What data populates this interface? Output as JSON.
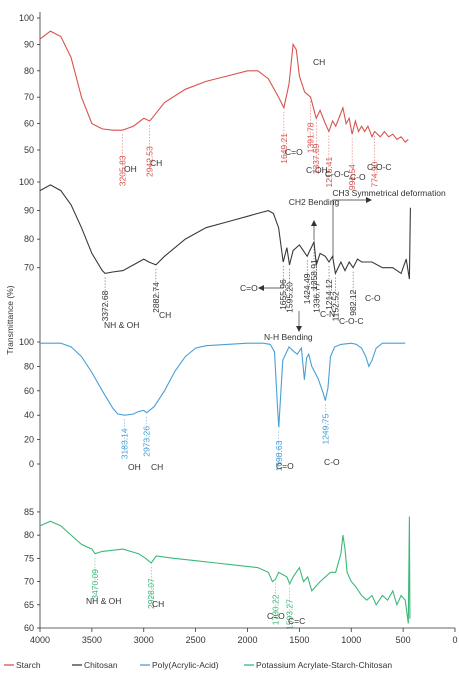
{
  "chart_data": {
    "type": "line",
    "ylabel": "Transmittance (%)",
    "xlim": [
      4000,
      0
    ],
    "x_ticks": [
      "4000",
      "3500",
      "3000",
      "2500",
      "2000",
      "1500",
      "1000",
      "500",
      "0"
    ],
    "grid": false,
    "legend_position": "bottom",
    "panels": [
      {
        "series": "Starch",
        "color": "#d9534f",
        "ylim": [
          50,
          100
        ],
        "y_ticks": [
          "50",
          "60",
          "70",
          "80",
          "90",
          "100"
        ],
        "points": [
          [
            4000,
            92
          ],
          [
            3900,
            95
          ],
          [
            3800,
            93
          ],
          [
            3700,
            85
          ],
          [
            3600,
            70
          ],
          [
            3500,
            60
          ],
          [
            3400,
            58
          ],
          [
            3300,
            57.5
          ],
          [
            3205.83,
            57.5
          ],
          [
            3100,
            59
          ],
          [
            3000,
            62
          ],
          [
            2942.53,
            61
          ],
          [
            2900,
            63
          ],
          [
            2800,
            68
          ],
          [
            2600,
            73
          ],
          [
            2400,
            76
          ],
          [
            2200,
            78
          ],
          [
            2000,
            80
          ],
          [
            1900,
            80
          ],
          [
            1800,
            77
          ],
          [
            1700,
            70
          ],
          [
            1649.21,
            66
          ],
          [
            1600,
            75
          ],
          [
            1560,
            90
          ],
          [
            1530,
            88
          ],
          [
            1500,
            78
          ],
          [
            1450,
            72
          ],
          [
            1391.78,
            70
          ],
          [
            1337.69,
            62
          ],
          [
            1300,
            65
          ],
          [
            1250,
            60
          ],
          [
            1215.41,
            57
          ],
          [
            1180,
            61
          ],
          [
            1150,
            59
          ],
          [
            1100,
            64
          ],
          [
            1080,
            66
          ],
          [
            1050,
            60
          ],
          [
            1020,
            62
          ],
          [
            991.54,
            56
          ],
          [
            960,
            61
          ],
          [
            930,
            57
          ],
          [
            900,
            59
          ],
          [
            870,
            57
          ],
          [
            840,
            59
          ],
          [
            800,
            55
          ],
          [
            774.9,
            57
          ],
          [
            720,
            55
          ],
          [
            680,
            57
          ],
          [
            640,
            55
          ],
          [
            600,
            56
          ],
          [
            560,
            54
          ],
          [
            520,
            55
          ],
          [
            480,
            53
          ],
          [
            450,
            54
          ]
        ],
        "peaks": [
          {
            "label": "3205.83",
            "x": 3205.83,
            "y": 57.5
          },
          {
            "label": "2942.53",
            "x": 2942.53,
            "y": 61
          },
          {
            "label": "1649.21",
            "x": 1649.21,
            "y": 66
          },
          {
            "label": "1391.78",
            "x": 1391.78,
            "y": 70
          },
          {
            "label": "1337.69",
            "x": 1337.69,
            "y": 62
          },
          {
            "label": "1215.41",
            "x": 1215.41,
            "y": 57
          },
          {
            "label": "991.54",
            "x": 991.54,
            "y": 56
          },
          {
            "label": "774.90",
            "x": 774.9,
            "y": 57
          }
        ],
        "annotations": [
          "OH",
          "CH",
          "C=O",
          "CH",
          "C-OH",
          "C-O-C",
          "C-O",
          "C-O-C"
        ]
      },
      {
        "series": "Chitosan",
        "color": "#3a3a3a",
        "ylim": [
          65,
          100
        ],
        "y_ticks": [
          "70",
          "80",
          "90",
          "100"
        ],
        "points": [
          [
            4000,
            97
          ],
          [
            3900,
            99
          ],
          [
            3800,
            97
          ],
          [
            3700,
            92
          ],
          [
            3600,
            84
          ],
          [
            3500,
            75
          ],
          [
            3400,
            69
          ],
          [
            3372.68,
            68
          ],
          [
            3300,
            68.5
          ],
          [
            3200,
            69
          ],
          [
            3100,
            71
          ],
          [
            3000,
            73
          ],
          [
            2950,
            72
          ],
          [
            2882.74,
            71
          ],
          [
            2800,
            74
          ],
          [
            2600,
            80
          ],
          [
            2400,
            84
          ],
          [
            2200,
            86
          ],
          [
            2000,
            88
          ],
          [
            1900,
            89
          ],
          [
            1800,
            90
          ],
          [
            1750,
            89
          ],
          [
            1700,
            84
          ],
          [
            1655.96,
            72
          ],
          [
            1620,
            77
          ],
          [
            1595.2,
            71
          ],
          [
            1560,
            76
          ],
          [
            1500,
            78
          ],
          [
            1424.49,
            74
          ],
          [
            1400,
            76
          ],
          [
            1358.91,
            79
          ],
          [
            1336.77,
            71
          ],
          [
            1300,
            75
          ],
          [
            1250,
            74
          ],
          [
            1214.12,
            72
          ],
          [
            1180,
            74
          ],
          [
            1152.52,
            68
          ],
          [
            1100,
            72
          ],
          [
            1060,
            69
          ],
          [
            1020,
            72
          ],
          [
            982.12,
            70
          ],
          [
            940,
            73
          ],
          [
            900,
            72
          ],
          [
            800,
            72
          ],
          [
            700,
            70
          ],
          [
            600,
            70
          ],
          [
            520,
            68
          ],
          [
            470,
            73
          ],
          [
            440,
            66
          ],
          [
            430,
            91
          ]
        ],
        "peaks": [
          {
            "label": "3372.68",
            "x": 3372.68,
            "y": 68
          },
          {
            "label": "2882.74",
            "x": 2882.74,
            "y": 71
          },
          {
            "label": "1655.96",
            "x": 1655.96,
            "y": 72
          },
          {
            "label": "1595.20",
            "x": 1595.2,
            "y": 71
          },
          {
            "label": "1424.49",
            "x": 1424.49,
            "y": 74
          },
          {
            "label": "1358.91",
            "x": 1358.91,
            "y": 79
          },
          {
            "label": "1336.77",
            "x": 1336.77,
            "y": 71
          },
          {
            "label": "1214.12",
            "x": 1214.12,
            "y": 72
          },
          {
            "label": "1152.52",
            "x": 1152.52,
            "y": 68
          },
          {
            "label": "982.12",
            "x": 982.12,
            "y": 70
          }
        ],
        "annotations": [
          "NH & OH",
          "CH",
          "C=O",
          "N-H Bending",
          "C-N",
          "C-O-C",
          "C-O",
          "CH2 Bending",
          "CH3 Symmetrical deformation"
        ]
      },
      {
        "series": "Poly(Acrylic-Acid)",
        "color": "#4a9fd5",
        "ylim": [
          0,
          100
        ],
        "y_ticks": [
          "0",
          "20",
          "40",
          "60",
          "80",
          "100"
        ],
        "points": [
          [
            4000,
            99
          ],
          [
            3800,
            99
          ],
          [
            3700,
            96
          ],
          [
            3600,
            88
          ],
          [
            3500,
            75
          ],
          [
            3400,
            60
          ],
          [
            3300,
            46
          ],
          [
            3250,
            41
          ],
          [
            3183.14,
            40
          ],
          [
            3100,
            41
          ],
          [
            3050,
            43
          ],
          [
            3000,
            44
          ],
          [
            2973.26,
            42
          ],
          [
            2900,
            47
          ],
          [
            2800,
            60
          ],
          [
            2700,
            76
          ],
          [
            2600,
            88
          ],
          [
            2500,
            95
          ],
          [
            2400,
            97
          ],
          [
            2200,
            98
          ],
          [
            2000,
            99
          ],
          [
            1850,
            99
          ],
          [
            1780,
            98
          ],
          [
            1740,
            92
          ],
          [
            1710,
            45
          ],
          [
            1698.63,
            30
          ],
          [
            1685,
            50
          ],
          [
            1660,
            85
          ],
          [
            1600,
            96
          ],
          [
            1550,
            92
          ],
          [
            1520,
            90
          ],
          [
            1480,
            95
          ],
          [
            1452,
            69
          ],
          [
            1430,
            87
          ],
          [
            1410,
            90
          ],
          [
            1380,
            80
          ],
          [
            1320,
            70
          ],
          [
            1270,
            58
          ],
          [
            1249.75,
            52
          ],
          [
            1225,
            62
          ],
          [
            1200,
            88
          ],
          [
            1160,
            96
          ],
          [
            1100,
            98
          ],
          [
            1000,
            99
          ],
          [
            950,
            98
          ],
          [
            900,
            95
          ],
          [
            860,
            88
          ],
          [
            830,
            80
          ],
          [
            800,
            85
          ],
          [
            760,
            95
          ],
          [
            700,
            99
          ],
          [
            600,
            99
          ],
          [
            480,
            99
          ]
        ],
        "peaks": [
          {
            "label": "3183.14",
            "x": 3183.14,
            "y": 40
          },
          {
            "label": "2973.26",
            "x": 2973.26,
            "y": 42
          },
          {
            "label": "1698.63",
            "x": 1698.63,
            "y": 30
          },
          {
            "label": "1249.75",
            "x": 1249.75,
            "y": 52
          }
        ],
        "annotations": [
          "OH",
          "CH",
          "C=O",
          "C-O"
        ]
      },
      {
        "series": "Potassium Acrylate-Starch-Chitosan",
        "color": "#3cb878",
        "ylim": [
          60,
          88
        ],
        "y_ticks": [
          "60",
          "65",
          "70",
          "75",
          "80",
          "85"
        ],
        "points": [
          [
            4000,
            82
          ],
          [
            3900,
            83
          ],
          [
            3800,
            82
          ],
          [
            3700,
            80
          ],
          [
            3600,
            78
          ],
          [
            3500,
            77
          ],
          [
            3470.09,
            76
          ],
          [
            3400,
            76.5
          ],
          [
            3200,
            77
          ],
          [
            3050,
            76
          ],
          [
            2980,
            75
          ],
          [
            2928.07,
            74
          ],
          [
            2880,
            75.5
          ],
          [
            2700,
            75
          ],
          [
            2500,
            74.5
          ],
          [
            2300,
            74
          ],
          [
            2100,
            73.5
          ],
          [
            1900,
            73
          ],
          [
            1800,
            72
          ],
          [
            1760,
            70
          ],
          [
            1730.22,
            70.5
          ],
          [
            1700,
            72
          ],
          [
            1620,
            71
          ],
          [
            1593.27,
            69.5
          ],
          [
            1560,
            71
          ],
          [
            1500,
            73
          ],
          [
            1460,
            70
          ],
          [
            1420,
            71
          ],
          [
            1380,
            68
          ],
          [
            1300,
            70
          ],
          [
            1200,
            72
          ],
          [
            1150,
            72
          ],
          [
            1100,
            76
          ],
          [
            1080,
            80
          ],
          [
            1060,
            77
          ],
          [
            1040,
            72
          ],
          [
            1000,
            70
          ],
          [
            960,
            69
          ],
          [
            900,
            67
          ],
          [
            850,
            66
          ],
          [
            800,
            67
          ],
          [
            760,
            65
          ],
          [
            700,
            67
          ],
          [
            650,
            66
          ],
          [
            600,
            68
          ],
          [
            560,
            65
          ],
          [
            520,
            67
          ],
          [
            480,
            66
          ],
          [
            450,
            61
          ],
          [
            440,
            84
          ],
          [
            435,
            62
          ]
        ],
        "peaks": [
          {
            "label": "3470.09",
            "x": 3470.09,
            "y": 76
          },
          {
            "label": "2928.07",
            "x": 2928.07,
            "y": 74
          },
          {
            "label": "1730.22",
            "x": 1730.22,
            "y": 70.5
          },
          {
            "label": "1593.27",
            "x": 1593.27,
            "y": 69.5
          }
        ],
        "annotations": [
          "NH & OH",
          "CH",
          "C=O",
          "C=C"
        ]
      }
    ],
    "legend": [
      "Starch",
      "Chitosan",
      "Poly(Acrylic-Acid)",
      "Potassium Acrylate-Starch-Chitosan"
    ]
  }
}
